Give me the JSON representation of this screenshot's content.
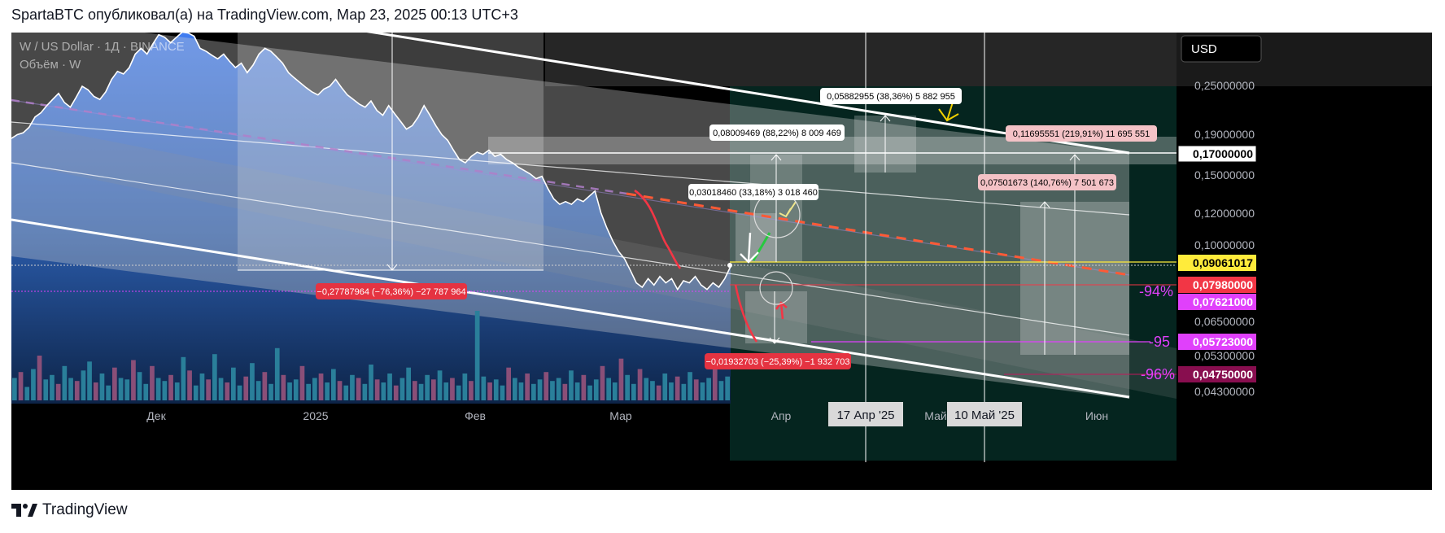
{
  "header": {
    "attribution": "SpartaBTC опубликовал(а) на TradingView.com, Мар 23, 2025 00:13 UTC+3"
  },
  "footer": {
    "brand": "TradingView"
  },
  "chart_data": {
    "type": "area",
    "symbol_label": "W / US Dollar · 1Д · BINANCE",
    "volume_label": "Объём · W",
    "currency": "USD",
    "y_axis_ticks": [
      "0,25000000",
      "0,19000000",
      "0,15000000",
      "0,12000000",
      "0,10000000",
      "0,06500000",
      "0,05300000",
      "0,04300000"
    ],
    "ylim": [
      0.041,
      0.34
    ],
    "x_axis_ticks": [
      "Дек",
      "2025",
      "Фев",
      "Мар",
      "Апр",
      "Май",
      "Июн"
    ],
    "x_markers": [
      "17 Апр '25",
      "10 Май '25"
    ],
    "price_markers": [
      {
        "value": "0,17000000",
        "bg": "#ffffff",
        "fg": "#000000"
      },
      {
        "value": "0,09061017",
        "bg": "#ffeb3b",
        "fg": "#000000"
      },
      {
        "value": "0,07980000",
        "bg": "#f23645",
        "fg": "#ffffff"
      },
      {
        "value": "0,07621000",
        "bg": "#e040fb",
        "fg": "#ffffff"
      },
      {
        "value": "0,05723000",
        "bg": "#e040fb",
        "fg": "#ffffff"
      },
      {
        "value": "0,04750000",
        "bg": "#880e4f",
        "fg": "#ffffff"
      }
    ],
    "level_labels": [
      "-94%",
      "-95",
      "-96%"
    ],
    "measurements": [
      {
        "text": "0,05882955 (38,36%) 5 882 955",
        "bg": "#ffffff",
        "fg": "#000000"
      },
      {
        "text": "0,08009469 (88,22%) 8 009 469",
        "bg": "#ffffff",
        "fg": "#000000"
      },
      {
        "text": "0,11695551 (219,91%) 11 695 551",
        "bg": "#f4c2c6",
        "fg": "#000000"
      },
      {
        "text": "0,07501673 (140,76%) 7 501 673",
        "bg": "#f4c2c6",
        "fg": "#000000"
      },
      {
        "text": "0,03018460 (33,18%) 3 018 460",
        "bg": "#ffffff",
        "fg": "#000000"
      },
      {
        "text": "−0,27787964 (−76,36%) −27 787 964",
        "bg": "#e53341",
        "fg": "#ffffff"
      },
      {
        "text": "−0,01932703 (−25,39%) −1 932 703",
        "bg": "#e53341",
        "fg": "#ffffff"
      }
    ],
    "price_series": [
      0.186,
      0.19,
      0.192,
      0.198,
      0.21,
      0.215,
      0.224,
      0.232,
      0.24,
      0.228,
      0.222,
      0.235,
      0.25,
      0.245,
      0.236,
      0.232,
      0.242,
      0.26,
      0.272,
      0.268,
      0.278,
      0.3,
      0.31,
      0.3,
      0.318,
      0.335,
      0.33,
      0.32,
      0.33,
      0.34,
      0.338,
      0.332,
      0.31,
      0.305,
      0.298,
      0.292,
      0.3,
      0.288,
      0.278,
      0.285,
      0.27,
      0.282,
      0.3,
      0.31,
      0.305,
      0.295,
      0.285,
      0.27,
      0.262,
      0.255,
      0.248,
      0.242,
      0.238,
      0.246,
      0.25,
      0.26,
      0.248,
      0.238,
      0.232,
      0.226,
      0.222,
      0.23,
      0.218,
      0.212,
      0.224,
      0.214,
      0.205,
      0.196,
      0.2,
      0.21,
      0.224,
      0.212,
      0.2,
      0.19,
      0.184,
      0.174,
      0.165,
      0.162,
      0.168,
      0.172,
      0.17,
      0.174,
      0.168,
      0.17,
      0.165,
      0.162,
      0.158,
      0.155,
      0.152,
      0.148,
      0.15,
      0.14,
      0.132,
      0.128,
      0.13,
      0.128,
      0.132,
      0.13,
      0.134,
      0.138,
      0.122,
      0.112,
      0.104,
      0.098,
      0.094,
      0.088,
      0.082,
      0.08,
      0.084,
      0.081,
      0.085,
      0.082,
      0.084,
      0.079,
      0.083,
      0.082,
      0.085,
      0.081,
      0.079,
      0.082,
      0.08,
      0.084,
      0.09
    ],
    "volume_series": [
      30,
      38,
      18,
      42,
      60,
      28,
      34,
      22,
      46,
      30,
      26,
      40,
      52,
      24,
      36,
      20,
      44,
      30,
      28,
      54,
      38,
      22,
      46,
      30,
      26,
      34,
      24,
      58,
      40,
      20,
      36,
      28,
      62,
      30,
      24,
      44,
      20,
      32,
      50,
      26,
      38,
      22,
      70,
      34,
      24,
      28,
      46,
      22,
      30,
      36,
      24,
      42,
      26,
      20,
      34,
      30,
      22,
      48,
      28,
      24,
      36,
      20,
      30,
      44,
      26,
      22,
      34,
      28,
      40,
      24,
      30,
      20,
      36,
      26,
      120,
      32,
      24,
      28,
      20,
      44,
      30,
      24,
      36,
      22,
      28,
      38,
      26,
      30,
      22,
      40,
      24,
      34,
      20,
      28,
      46,
      30,
      24,
      56,
      34,
      22,
      42,
      30,
      26,
      20,
      36,
      24,
      32,
      22,
      38,
      28,
      24,
      30,
      44,
      26,
      32
    ]
  }
}
